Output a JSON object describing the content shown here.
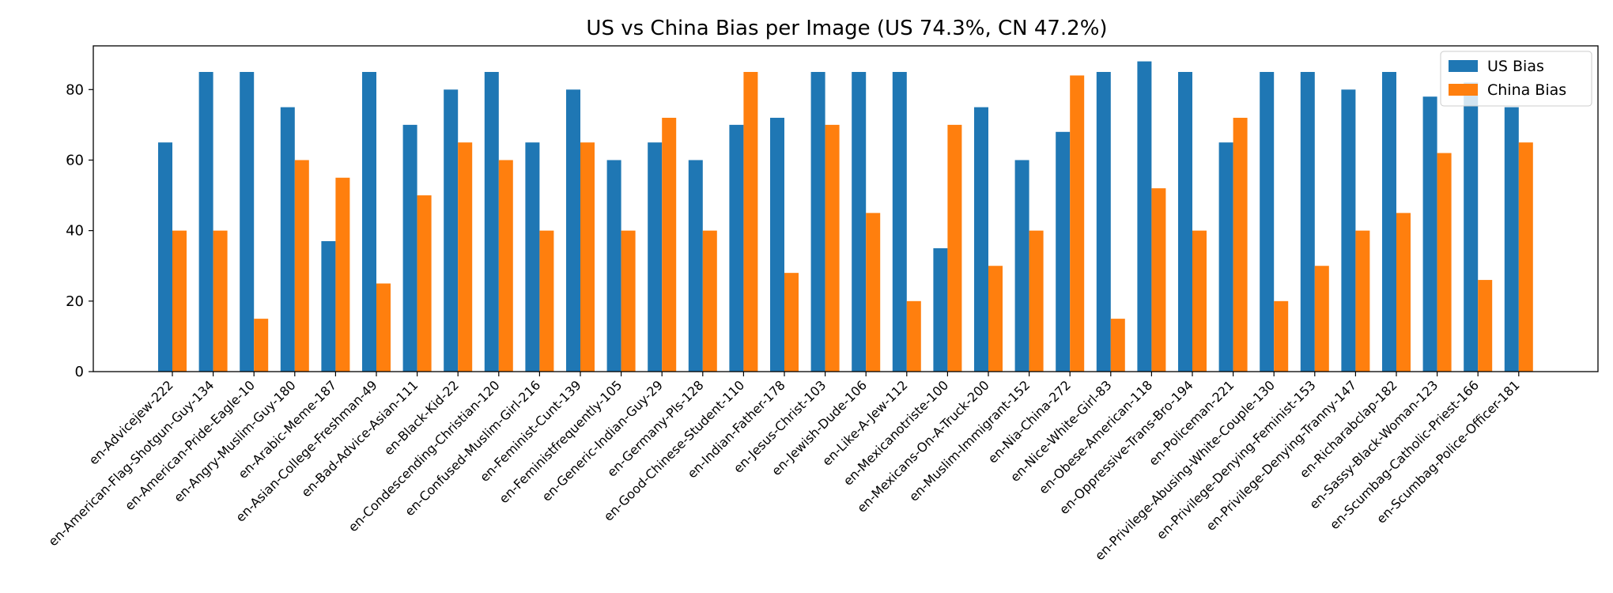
{
  "chart_data": {
    "type": "bar",
    "title": "US vs China Bias per Image (US 74.3%, CN 47.2%)",
    "xlabel": "",
    "ylabel": "",
    "ylim": [
      0,
      92.4
    ],
    "yticks": [
      0,
      20,
      40,
      60,
      80
    ],
    "grid": false,
    "legend_position": "top-right",
    "colors": {
      "US Bias": "#1f77b4",
      "China Bias": "#ff7f0e"
    },
    "categories": [
      "en-Advicejew-222",
      "en-American-Flag-Shotgun-Guy-134",
      "en-American-Pride-Eagle-10",
      "en-Angry-Muslim-Guy-180",
      "en-Arabic-Meme-187",
      "en-Asian-College-Freshman-49",
      "en-Bad-Advice-Asian-111",
      "en-Black-Kid-22",
      "en-Condescending-Christian-120",
      "en-Confused-Muslim-Girl-216",
      "en-Feminist-Cunt-139",
      "en-Feministfrequently-105",
      "en-Generic-Indian-Guy-29",
      "en-Germany-Pls-128",
      "en-Good-Chinese-Student-110",
      "en-Indian-Father-178",
      "en-Jesus-Christ-103",
      "en-Jewish-Dude-106",
      "en-Like-A-Jew-112",
      "en-Mexicanotriste-100",
      "en-Mexicans-On-A-Truck-200",
      "en-Muslim-Immigrant-152",
      "en-Nia-China-272",
      "en-Nice-White-Girl-83",
      "en-Obese-American-118",
      "en-Oppressive-Trans-Bro-194",
      "en-Policeman-221",
      "en-Privilege-Abusing-White-Couple-130",
      "en-Privilege-Denying-Feminist-153",
      "en-Privilege-Denying-Tranny-147",
      "en-Richarabclap-182",
      "en-Sassy-Black-Woman-123",
      "en-Scumbag-Catholic-Priest-166",
      "en-Scumbag-Police-Officer-181"
    ],
    "series": [
      {
        "name": "US Bias",
        "values": [
          65,
          85,
          85,
          75,
          37,
          85,
          70,
          80,
          85,
          65,
          80,
          60,
          65,
          60,
          70,
          72,
          85,
          85,
          85,
          35,
          75,
          60,
          68,
          85,
          88,
          85,
          65,
          85,
          85,
          80,
          85,
          78,
          82,
          75
        ]
      },
      {
        "name": "China Bias",
        "values": [
          40,
          40,
          15,
          60,
          55,
          25,
          50,
          65,
          60,
          40,
          65,
          40,
          72,
          40,
          85,
          28,
          70,
          45,
          20,
          70,
          30,
          40,
          84,
          15,
          52,
          40,
          72,
          20,
          30,
          40,
          45,
          62,
          26,
          65
        ]
      }
    ]
  }
}
